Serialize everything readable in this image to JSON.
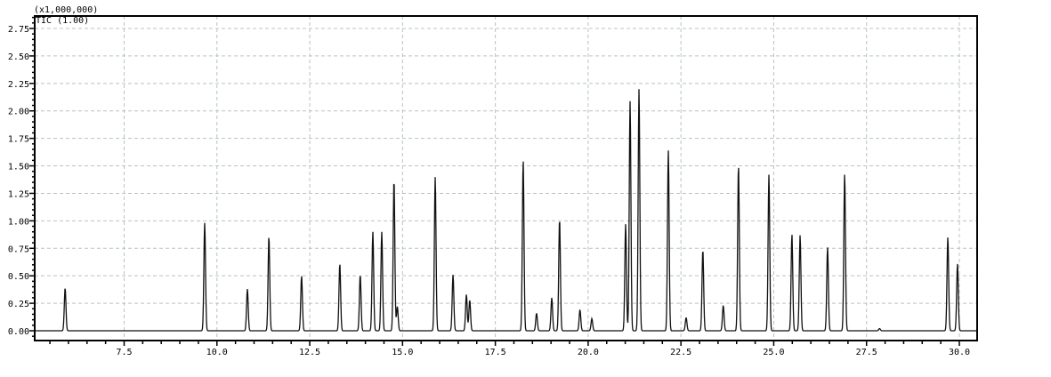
{
  "chart_data": {
    "type": "line",
    "scale_label": "(x1,000,000)",
    "trace_label": "TIC (1.00)",
    "xlim": [
      5.09,
      30.48
    ],
    "ylim": [
      0,
      2.9
    ],
    "x_ticks": [
      7.5,
      10.0,
      12.5,
      15.0,
      17.5,
      20.0,
      22.5,
      25.0,
      27.5,
      30.0
    ],
    "x_tick_labels": [
      "7.5",
      "10.0",
      "12.5",
      "15.0",
      "17.5",
      "20.0",
      "22.5",
      "25.0",
      "27.5",
      "30.0"
    ],
    "y_ticks": [
      0,
      0.25,
      0.5,
      0.75,
      1.0,
      1.25,
      1.5,
      1.75,
      2.0,
      2.25,
      2.5,
      2.75
    ],
    "y_tick_labels": [
      "0.00",
      "0.25",
      "0.50",
      "0.75",
      "1.00",
      "1.25",
      "1.50",
      "1.75",
      "2.00",
      "2.25",
      "2.50",
      "2.75"
    ],
    "grid": true,
    "line_color": "#111111",
    "grid_color": "#b8c4c0",
    "peaks": [
      [
        5.91,
        0.39
      ],
      [
        9.67,
        0.98
      ],
      [
        10.82,
        0.38
      ],
      [
        11.4,
        0.86
      ],
      [
        12.28,
        0.5
      ],
      [
        13.31,
        0.61
      ],
      [
        13.86,
        0.51
      ],
      [
        14.2,
        0.9
      ],
      [
        14.44,
        0.9
      ],
      [
        14.77,
        1.38
      ],
      [
        14.86,
        0.22
      ],
      [
        15.88,
        1.4
      ],
      [
        16.36,
        0.51
      ],
      [
        16.72,
        0.33
      ],
      [
        16.81,
        0.28
      ],
      [
        18.25,
        1.55
      ],
      [
        18.61,
        0.16
      ],
      [
        19.02,
        0.3
      ],
      [
        19.23,
        1.02
      ],
      [
        19.78,
        0.19
      ],
      [
        20.1,
        0.11
      ],
      [
        21.01,
        0.97
      ],
      [
        21.13,
        2.09
      ],
      [
        21.37,
        2.2
      ],
      [
        22.16,
        1.64
      ],
      [
        22.64,
        0.12
      ],
      [
        23.09,
        0.74
      ],
      [
        23.64,
        0.23
      ],
      [
        24.05,
        1.51
      ],
      [
        24.87,
        1.42
      ],
      [
        25.49,
        0.88
      ],
      [
        25.71,
        0.87
      ],
      [
        26.45,
        0.76
      ],
      [
        26.91,
        1.43
      ],
      [
        27.85,
        0.02
      ],
      [
        29.69,
        0.85
      ],
      [
        29.95,
        0.61
      ]
    ]
  }
}
